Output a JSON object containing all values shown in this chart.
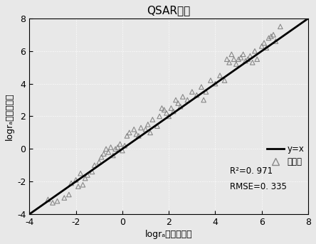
{
  "title": "QSAR模型",
  "xlabel": "logrₐ（实测值）",
  "ylabel": "logrₐ（预测值）",
  "xlim": [
    -4,
    8
  ],
  "ylim": [
    -4,
    8
  ],
  "xticks": [
    -4,
    -2,
    0,
    2,
    4,
    6,
    8
  ],
  "yticks": [
    -4,
    -2,
    0,
    2,
    4,
    6,
    8
  ],
  "line_color": "black",
  "scatter_color": "#888888",
  "legend_line_label": "y=x",
  "legend_scatter_label": "训练集",
  "r2_text": "R²=0. 971",
  "rmse_text": "RMSE=0. 335",
  "scatter_points": [
    [
      -3.2,
      -3.1
    ],
    [
      -3.0,
      -3.3
    ],
    [
      -2.8,
      -3.2
    ],
    [
      -2.5,
      -3.0
    ],
    [
      -2.3,
      -2.8
    ],
    [
      -2.2,
      -2.1
    ],
    [
      -2.0,
      -1.9
    ],
    [
      -1.9,
      -2.3
    ],
    [
      -1.8,
      -1.5
    ],
    [
      -1.7,
      -2.2
    ],
    [
      -1.6,
      -1.8
    ],
    [
      -1.5,
      -1.6
    ],
    [
      -1.3,
      -1.4
    ],
    [
      -1.2,
      -1.0
    ],
    [
      -1.0,
      -0.8
    ],
    [
      -0.9,
      -0.5
    ],
    [
      -0.8,
      -0.3
    ],
    [
      -0.7,
      0.0
    ],
    [
      -0.6,
      -0.2
    ],
    [
      -0.5,
      0.1
    ],
    [
      -0.4,
      -0.4
    ],
    [
      -0.3,
      0.0
    ],
    [
      -0.2,
      0.1
    ],
    [
      -0.1,
      0.3
    ],
    [
      0.0,
      -0.1
    ],
    [
      0.1,
      0.2
    ],
    [
      0.2,
      0.8
    ],
    [
      0.3,
      1.0
    ],
    [
      0.5,
      1.2
    ],
    [
      0.6,
      0.9
    ],
    [
      0.7,
      0.8
    ],
    [
      0.8,
      1.3
    ],
    [
      1.0,
      1.2
    ],
    [
      1.1,
      1.5
    ],
    [
      1.2,
      1.0
    ],
    [
      1.3,
      1.8
    ],
    [
      1.5,
      1.4
    ],
    [
      1.6,
      2.0
    ],
    [
      1.7,
      2.5
    ],
    [
      1.8,
      2.4
    ],
    [
      1.9,
      2.2
    ],
    [
      2.0,
      2.0
    ],
    [
      2.1,
      2.5
    ],
    [
      2.2,
      2.3
    ],
    [
      2.3,
      3.0
    ],
    [
      2.4,
      2.8
    ],
    [
      2.5,
      2.6
    ],
    [
      2.6,
      3.2
    ],
    [
      2.8,
      3.0
    ],
    [
      3.0,
      3.5
    ],
    [
      3.2,
      3.3
    ],
    [
      3.4,
      3.8
    ],
    [
      3.5,
      3.0
    ],
    [
      3.6,
      3.5
    ],
    [
      3.8,
      4.2
    ],
    [
      4.0,
      4.0
    ],
    [
      4.2,
      4.5
    ],
    [
      4.4,
      4.2
    ],
    [
      4.5,
      5.5
    ],
    [
      4.6,
      5.3
    ],
    [
      4.7,
      5.8
    ],
    [
      4.8,
      5.5
    ],
    [
      4.9,
      5.2
    ],
    [
      5.0,
      5.5
    ],
    [
      5.1,
      5.6
    ],
    [
      5.2,
      5.8
    ],
    [
      5.3,
      5.4
    ],
    [
      5.4,
      5.5
    ],
    [
      5.5,
      5.7
    ],
    [
      5.6,
      5.3
    ],
    [
      5.7,
      6.0
    ],
    [
      5.8,
      5.5
    ],
    [
      6.0,
      6.3
    ],
    [
      6.1,
      6.5
    ],
    [
      6.2,
      6.2
    ],
    [
      6.3,
      6.8
    ],
    [
      6.4,
      6.9
    ],
    [
      6.5,
      7.0
    ],
    [
      6.6,
      6.6
    ],
    [
      6.8,
      7.5
    ]
  ],
  "background_color": "#e8e8e8",
  "grid_color": "#ffffff",
  "figsize": [
    4.44,
    3.43
  ],
  "dpi": 100
}
